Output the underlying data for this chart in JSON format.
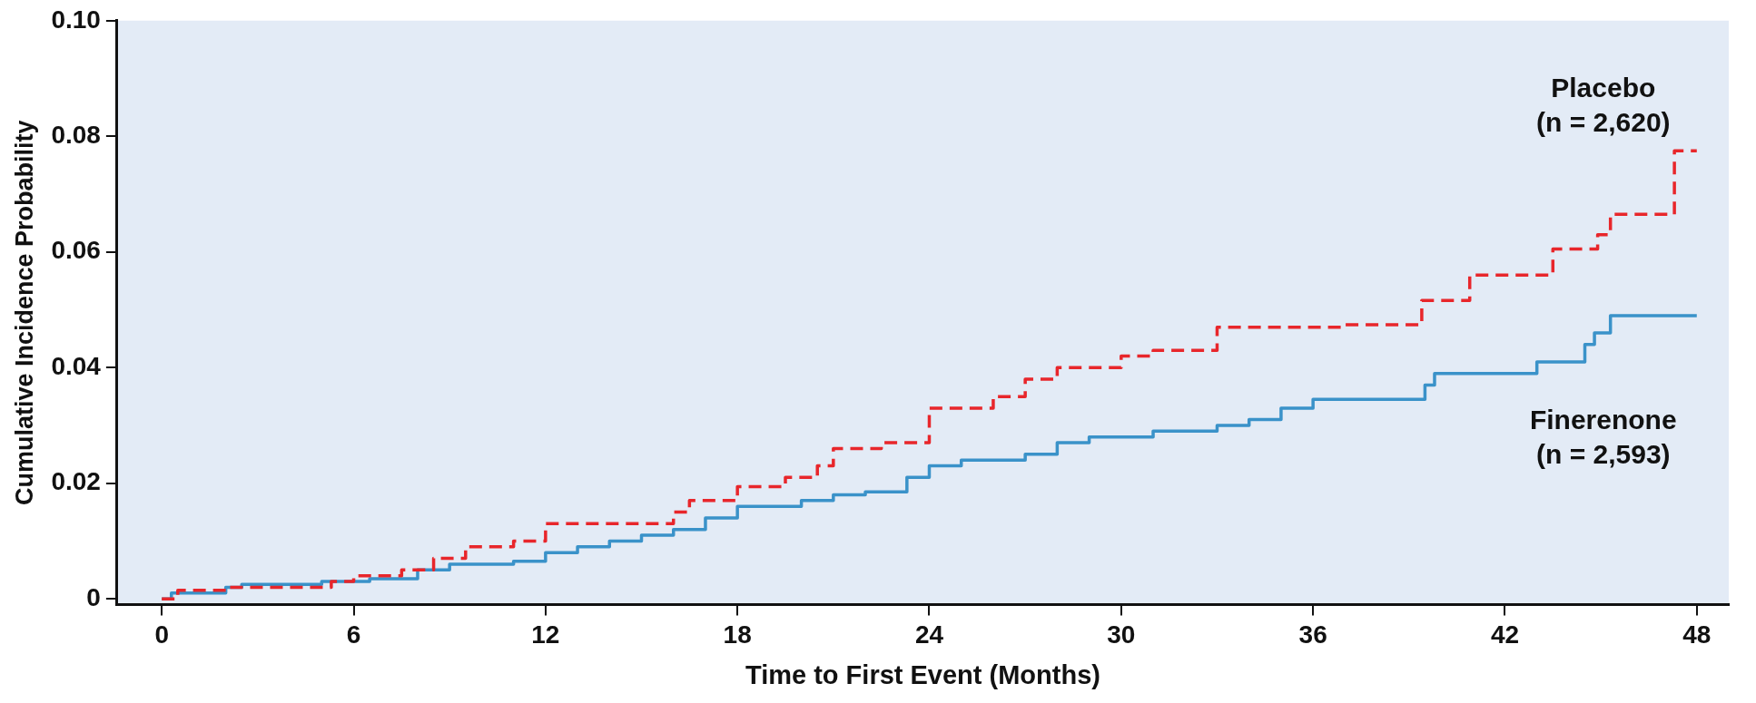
{
  "chart_data": {
    "type": "step",
    "xlabel": "Time to First Event (Months)",
    "ylabel": "Cumulative Incidence Probability",
    "xlim": [
      -1.4,
      49
    ],
    "xticks": [
      0,
      6,
      12,
      18,
      24,
      30,
      36,
      42,
      48
    ],
    "ylim": [
      -0.001,
      0.1
    ],
    "yticks": [
      0,
      0.02,
      0.04,
      0.06,
      0.08,
      {
        "value": 0.1,
        "label": "0.10"
      }
    ],
    "grid": false,
    "legend": false,
    "marker": "none",
    "series": [
      {
        "name": "Placebo (n = 2,620)",
        "color": "#e8262b",
        "line_style": "dashed",
        "x": [
          0,
          0.5,
          2,
          5.3,
          6,
          7.5,
          8.5,
          9.5,
          11,
          12,
          16,
          16.5,
          18,
          19.5,
          20.5,
          21,
          22.5,
          24,
          26,
          27,
          28,
          30,
          31,
          33,
          37,
          39.4,
          40.9,
          43.5,
          44.9,
          45.3,
          47.3,
          48
        ],
        "values": [
          0,
          0.0015,
          0.002,
          0.003,
          0.004,
          0.005,
          0.007,
          0.009,
          0.01,
          0.013,
          0.015,
          0.017,
          0.0194,
          0.021,
          0.023,
          0.026,
          0.027,
          0.033,
          0.035,
          0.038,
          0.04,
          0.042,
          0.043,
          0.047,
          0.0474,
          0.0516,
          0.056,
          0.0605,
          0.063,
          0.0665,
          0.0775,
          0.0775
        ]
      },
      {
        "name": "Finerenone (n = 2,593)",
        "color": "#3a92c9",
        "line_style": "solid",
        "x": [
          0,
          0.3,
          2,
          2.5,
          5,
          6.5,
          8,
          9,
          11,
          12,
          13,
          14,
          15,
          16,
          17,
          18,
          20,
          21,
          22,
          23.3,
          24,
          25,
          27,
          28,
          29,
          31,
          33,
          34,
          35,
          36,
          39.5,
          39.8,
          43,
          44.5,
          44.8,
          45.3,
          48
        ],
        "values": [
          0,
          0.001,
          0.002,
          0.0025,
          0.003,
          0.0035,
          0.005,
          0.006,
          0.0065,
          0.008,
          0.009,
          0.01,
          0.011,
          0.012,
          0.014,
          0.016,
          0.017,
          0.018,
          0.0185,
          0.021,
          0.023,
          0.024,
          0.025,
          0.027,
          0.028,
          0.029,
          0.03,
          0.031,
          0.033,
          0.0345,
          0.037,
          0.039,
          0.041,
          0.044,
          0.046,
          0.049,
          0.049
        ]
      }
    ]
  }
}
